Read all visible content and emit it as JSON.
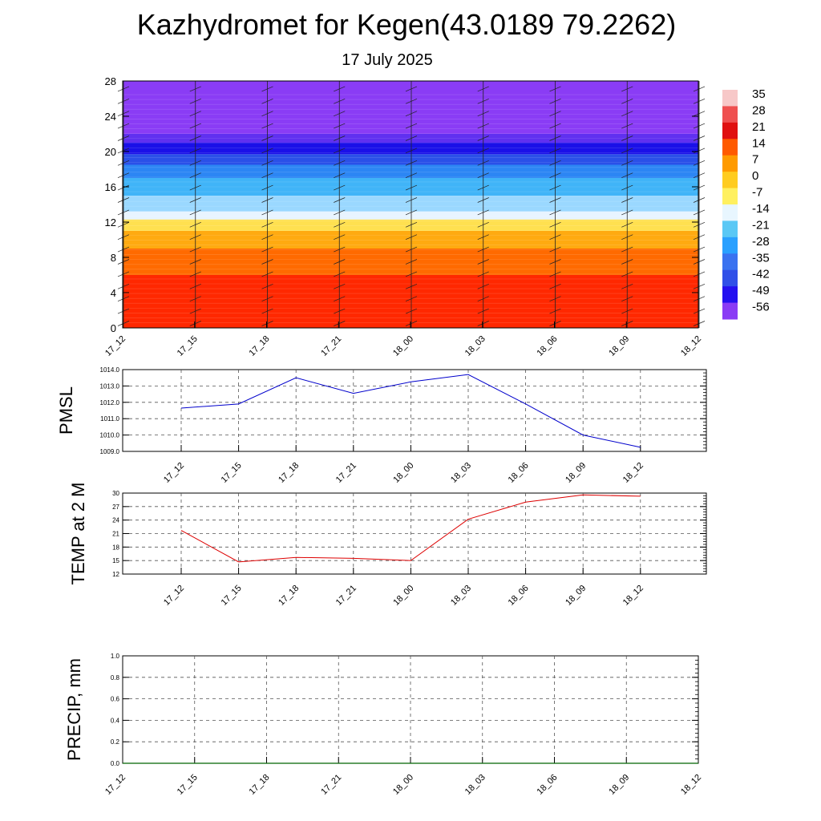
{
  "title": "Kazhydromet for Kegen(43.0189 79.2262)",
  "subtitle": "17 July 2025",
  "chart_data": [
    {
      "type": "heatmap",
      "x_tick_labels": [
        "17_12",
        "17_15",
        "17_18",
        "17_21",
        "18_00",
        "18_03",
        "18_06",
        "18_09",
        "18_12"
      ],
      "y_ticks": [
        0,
        4,
        8,
        12,
        16,
        20,
        24,
        28
      ],
      "ylim": [
        0,
        28
      ],
      "colorbar_labels": [
        "35",
        "28",
        "21",
        "14",
        "7",
        "0",
        "-7",
        "-14",
        "-21",
        "-28",
        "-35",
        "-42",
        "-49",
        "-56"
      ],
      "colorbar_colors": [
        "#f7c8c8",
        "#ef5050",
        "#e01010",
        "#ff5a00",
        "#ff9a00",
        "#ffcc20",
        "#fff060",
        "#e8f6ff",
        "#5ac8f5",
        "#2aa0ff",
        "#3a72f0",
        "#3050e8",
        "#2410f0",
        "#8a3cf5"
      ],
      "layers": [
        {
          "from": 0,
          "to": 6,
          "color": "#ff2800"
        },
        {
          "from": 6,
          "to": 9,
          "color": "#ff6a00"
        },
        {
          "from": 9,
          "to": 11,
          "color": "#ffaa10"
        },
        {
          "from": 11,
          "to": 12.3,
          "color": "#ffe050"
        },
        {
          "from": 12.3,
          "to": 13.2,
          "color": "#e8f4ff"
        },
        {
          "from": 13.2,
          "to": 15,
          "color": "#9ad8ff"
        },
        {
          "from": 15,
          "to": 17,
          "color": "#40b4f8"
        },
        {
          "from": 17,
          "to": 18.5,
          "color": "#2c86f4"
        },
        {
          "from": 18.5,
          "to": 19.7,
          "color": "#2a50e8"
        },
        {
          "from": 19.7,
          "to": 21,
          "color": "#1a10e8"
        },
        {
          "from": 21,
          "to": 22,
          "color": "#6030f0"
        },
        {
          "from": 22,
          "to": 28,
          "color": "#8a3cf5"
        }
      ]
    },
    {
      "type": "line",
      "ylabel": "PMSL",
      "x": [
        "17_12",
        "17_15",
        "17_18",
        "17_21",
        "18_00",
        "18_03",
        "18_06",
        "18_09",
        "18_12"
      ],
      "y_ticks": [
        "1009.0",
        "1010.0",
        "1011.0",
        "1012.0",
        "1013.0",
        "1014.0"
      ],
      "ylim": [
        1009,
        1014
      ],
      "series": [
        {
          "values": [
            1011.65,
            1011.9,
            1013.5,
            1012.55,
            1013.25,
            1013.7,
            1011.9,
            1010.0,
            1009.25
          ],
          "color": "#0000cc"
        }
      ]
    },
    {
      "type": "line",
      "ylabel": "TEMP at 2 M",
      "x": [
        "17_12",
        "17_15",
        "17_18",
        "17_21",
        "18_00",
        "18_03",
        "18_06",
        "18_09",
        "18_12"
      ],
      "y_ticks": [
        "12",
        "15",
        "18",
        "21",
        "24",
        "27",
        "30"
      ],
      "ylim": [
        12,
        30
      ],
      "series": [
        {
          "values": [
            21.7,
            14.7,
            15.7,
            15.5,
            15.0,
            24.2,
            28.0,
            29.6,
            29.3
          ],
          "color": "#dd0000"
        }
      ]
    },
    {
      "type": "line",
      "ylabel": "PRECIP, mm",
      "x_tick_labels": [
        "17_12",
        "17_15",
        "17_18",
        "17_21",
        "18_00",
        "18_03",
        "18_06",
        "18_09",
        "18_12"
      ],
      "y_ticks": [
        "0.0",
        "0.2",
        "0.4",
        "0.6",
        "0.8",
        "1.0"
      ],
      "ylim": [
        0,
        1
      ],
      "series": [
        {
          "values": [
            0,
            0,
            0,
            0,
            0,
            0,
            0,
            0,
            0
          ],
          "color": "#006400"
        }
      ]
    }
  ]
}
